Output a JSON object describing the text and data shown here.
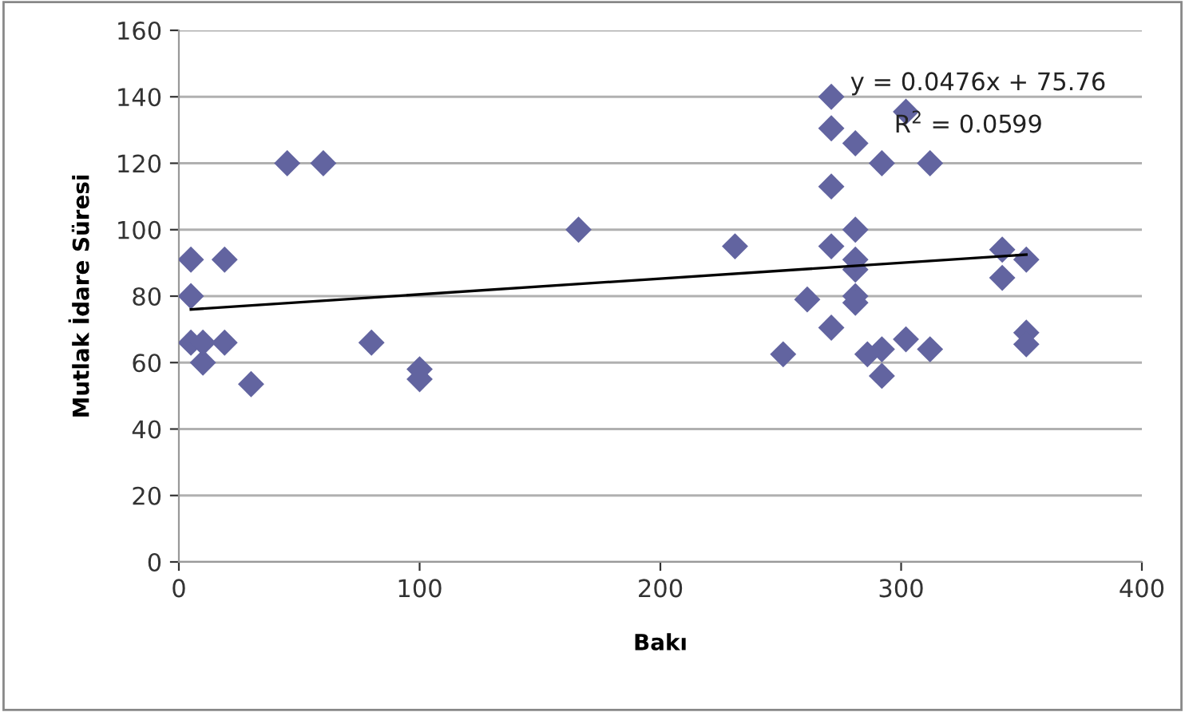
{
  "chart_data": {
    "type": "scatter",
    "xlabel": "Bakı",
    "ylabel": "Mutlak İdare Süresi",
    "xlim": [
      0,
      400
    ],
    "xticks": [
      0,
      100,
      200,
      300,
      400
    ],
    "ylim": [
      0,
      160
    ],
    "yticks": [
      0,
      20,
      40,
      60,
      80,
      100,
      120,
      140,
      160
    ],
    "grid": "y",
    "legend": false,
    "marker": "diamond",
    "annotations": [
      "y = 0.0476x + 75.76",
      "R$^{2}$ = 0.0599"
    ],
    "series": [
      {
        "color": "#6264a0",
        "x": [
          5,
          5,
          5,
          10,
          10,
          19,
          19,
          30,
          45,
          60,
          80,
          100,
          100,
          166,
          231,
          251,
          261,
          271,
          271,
          271,
          271,
          271,
          281,
          281,
          281,
          281,
          281,
          281,
          286,
          292,
          292,
          292,
          302,
          302,
          312,
          312,
          342,
          342,
          352,
          352,
          352
        ],
        "values": [
          91,
          80,
          66,
          60,
          66,
          91,
          66,
          53.5,
          120,
          120,
          66,
          58,
          55,
          100,
          95,
          62.5,
          79,
          140,
          130.5,
          113,
          95,
          70.5,
          126,
          100,
          91,
          88,
          80,
          78,
          62.5,
          64,
          56,
          120,
          135.5,
          67,
          120,
          64,
          94,
          85.5,
          91,
          69,
          65.5
        ]
      },
      {
        "type": "line",
        "color": "#000000",
        "marker": "none",
        "x": [
          5,
          352
        ],
        "values": [
          76,
          92.5
        ]
      }
    ]
  }
}
